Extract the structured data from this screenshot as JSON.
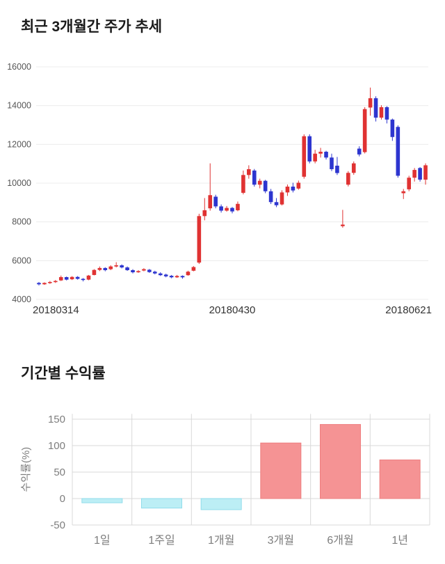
{
  "price_section": {
    "title": "최근 3개월간 주가 추세"
  },
  "returns_section": {
    "title": "기간별 수익률"
  },
  "chart_data": [
    {
      "type": "candlestick",
      "title": "최근 3개월간 주가 추세",
      "ylim": [
        4000,
        16000
      ],
      "y_ticks": [
        16000,
        14000,
        12000,
        10000,
        8000,
        6000,
        4000
      ],
      "x_labels": [
        "20180314",
        "20180430",
        "20180621"
      ],
      "legend_position": "none",
      "grid": true,
      "colors": {
        "up": "#e03232",
        "down": "#2d35cf",
        "grid": "#ececec",
        "tick_text": "#555555",
        "x_label_text": "#333333"
      },
      "candles_format": [
        "open",
        "high",
        "low",
        "close"
      ],
      "candles": [
        [
          4850,
          4900,
          4720,
          4780
        ],
        [
          4780,
          4880,
          4750,
          4850
        ],
        [
          4850,
          4950,
          4800,
          4900
        ],
        [
          4900,
          5000,
          4850,
          4950
        ],
        [
          4980,
          5230,
          4950,
          5150
        ],
        [
          5150,
          5180,
          4980,
          5020
        ],
        [
          5040,
          5200,
          5000,
          5160
        ],
        [
          5160,
          5200,
          5020,
          5060
        ],
        [
          5060,
          5100,
          4930,
          5000
        ],
        [
          5020,
          5260,
          4990,
          5230
        ],
        [
          5260,
          5560,
          5240,
          5520
        ],
        [
          5520,
          5700,
          5460,
          5620
        ],
        [
          5620,
          5660,
          5450,
          5510
        ],
        [
          5560,
          5760,
          5510,
          5700
        ],
        [
          5700,
          5920,
          5650,
          5760
        ],
        [
          5760,
          5810,
          5600,
          5650
        ],
        [
          5650,
          5700,
          5470,
          5510
        ],
        [
          5510,
          5560,
          5340,
          5400
        ],
        [
          5400,
          5510,
          5370,
          5460
        ],
        [
          5490,
          5610,
          5450,
          5560
        ],
        [
          5530,
          5570,
          5370,
          5410
        ],
        [
          5430,
          5480,
          5290,
          5340
        ],
        [
          5340,
          5400,
          5210,
          5250
        ],
        [
          5280,
          5330,
          5140,
          5190
        ],
        [
          5220,
          5260,
          5090,
          5140
        ],
        [
          5140,
          5260,
          5110,
          5210
        ],
        [
          5210,
          5240,
          5070,
          5140
        ],
        [
          5250,
          5480,
          5220,
          5430
        ],
        [
          5480,
          5720,
          5450,
          5670
        ],
        [
          5900,
          8420,
          5830,
          8300
        ],
        [
          8300,
          9230,
          8080,
          8600
        ],
        [
          8700,
          11020,
          8580,
          9380
        ],
        [
          9300,
          9400,
          8700,
          8800
        ],
        [
          8800,
          8900,
          8480,
          8580
        ],
        [
          8580,
          8820,
          8530,
          8720
        ],
        [
          8720,
          8770,
          8440,
          8540
        ],
        [
          8600,
          9050,
          8550,
          8930
        ],
        [
          9500,
          10650,
          9420,
          10420
        ],
        [
          10420,
          10920,
          10230,
          10720
        ],
        [
          10650,
          10730,
          9820,
          9920
        ],
        [
          9920,
          10230,
          9730,
          10120
        ],
        [
          10120,
          10170,
          9480,
          9580
        ],
        [
          9580,
          9700,
          8920,
          9020
        ],
        [
          9020,
          9230,
          8760,
          8860
        ],
        [
          8900,
          9630,
          8850,
          9520
        ],
        [
          9520,
          9930,
          9340,
          9820
        ],
        [
          9820,
          10020,
          9520,
          9620
        ],
        [
          9720,
          10130,
          9660,
          10020
        ],
        [
          10330,
          12520,
          10230,
          12420
        ],
        [
          12420,
          12520,
          11020,
          11120
        ],
        [
          11120,
          11720,
          11020,
          11520
        ],
        [
          11520,
          11820,
          11320,
          11620
        ],
        [
          11620,
          11670,
          11220,
          11320
        ],
        [
          11320,
          11520,
          10620,
          10720
        ],
        [
          10900,
          11350,
          10420,
          10520
        ],
        [
          7780,
          8620,
          7700,
          7860
        ],
        [
          9920,
          10620,
          9830,
          10530
        ],
        [
          10530,
          11120,
          10430,
          11020
        ],
        [
          11780,
          11900,
          11380,
          11480
        ],
        [
          11600,
          13920,
          11530,
          13820
        ],
        [
          13900,
          14930,
          13480,
          14380
        ],
        [
          14380,
          14480,
          13180,
          13380
        ],
        [
          13380,
          14020,
          13280,
          13920
        ],
        [
          13920,
          13970,
          13080,
          13280
        ],
        [
          13280,
          13330,
          12180,
          12380
        ],
        [
          12900,
          12980,
          10280,
          10380
        ],
        [
          9480,
          9700,
          9180,
          9580
        ],
        [
          9680,
          10380,
          9580,
          10280
        ],
        [
          10280,
          10780,
          10080,
          10680
        ],
        [
          10780,
          10830,
          10080,
          10180
        ],
        [
          10180,
          11020,
          9920,
          10920
        ]
      ]
    },
    {
      "type": "bar",
      "title": "기간별 수익률",
      "ylabel": "수익률(%)",
      "categories": [
        "1일",
        "1주일",
        "1개월",
        "3개월",
        "6개월",
        "1년"
      ],
      "values": [
        -8,
        -18,
        -21,
        105,
        140,
        73
      ],
      "y_ticks": [
        150,
        100,
        50,
        0,
        -50
      ],
      "ylim": [
        -50,
        160
      ],
      "grid": true,
      "legend_position": "none",
      "colors": {
        "positive_fill": "#f59394",
        "positive_stroke": "#ee7e7f",
        "negative_fill": "#bceef5",
        "negative_stroke": "#90dcea",
        "grid": "#d9d9d9",
        "axis_text": "#7d7d7d"
      }
    }
  ]
}
